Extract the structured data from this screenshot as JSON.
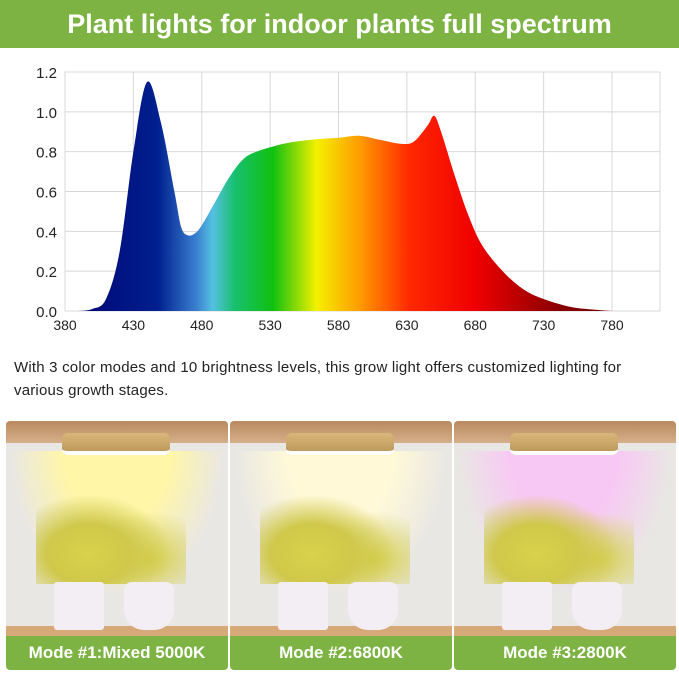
{
  "banner": {
    "title": "Plant lights for indoor plants full spectrum"
  },
  "description": "With 3 color modes and 10 brightness levels, this grow light offers customized lighting for various growth stages.",
  "modes": [
    {
      "label": "Mode #1:Mixed 5000K",
      "beam_color": "#fff6a8"
    },
    {
      "label": "Mode #2:6800K",
      "beam_color": "#fff9d8"
    },
    {
      "label": "Mode #3:2800K",
      "beam_color": "#f8c8f4"
    }
  ],
  "colors": {
    "brand_green": "#7cb342"
  },
  "chart_data": {
    "type": "area",
    "title": "",
    "xlabel": "",
    "ylabel": "",
    "xlim": [
      380,
      815
    ],
    "ylim": [
      0,
      1.2
    ],
    "xticks": [
      "380",
      "430",
      "480",
      "530",
      "580",
      "630",
      "680",
      "730",
      "780"
    ],
    "yticks": [
      "0.0",
      "0.2",
      "0.4",
      "0.6",
      "0.8",
      "1.0",
      "1.2"
    ],
    "grid": true,
    "fill": "visible-spectrum gradient",
    "x": [
      390,
      400,
      410,
      420,
      430,
      440,
      450,
      460,
      465,
      470,
      475,
      480,
      490,
      500,
      510,
      520,
      540,
      560,
      580,
      595,
      610,
      625,
      635,
      645,
      650,
      655,
      665,
      675,
      685,
      700,
      715,
      730,
      750,
      770,
      780
    ],
    "y": [
      0,
      0.01,
      0.06,
      0.3,
      0.8,
      1.15,
      0.95,
      0.6,
      0.42,
      0.38,
      0.39,
      0.43,
      0.55,
      0.67,
      0.76,
      0.8,
      0.84,
      0.86,
      0.87,
      0.88,
      0.86,
      0.84,
      0.85,
      0.93,
      0.98,
      0.9,
      0.68,
      0.48,
      0.33,
      0.2,
      0.11,
      0.06,
      0.02,
      0.005,
      0
    ]
  }
}
